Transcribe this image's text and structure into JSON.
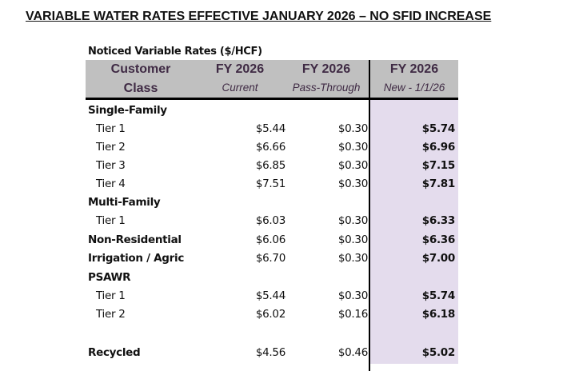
{
  "title": "VARIABLE WATER RATES EFFECTIVE JANUARY 2026 – NO SFID INCREASE",
  "subtitle": "Noticed Variable Rates ($/HCF)",
  "colors": {
    "header_bg": "#c0c0c0",
    "header_text": "#3f2a44",
    "new_col_bg": "#e4dced"
  },
  "header": [
    {
      "line1": "Customer",
      "line2": "Class"
    },
    {
      "line1": "FY 2026",
      "line2": "Current"
    },
    {
      "line1": "FY 2026",
      "line2": "Pass-Through"
    },
    {
      "line1": "FY 2026",
      "line2": "New - 1/1/26"
    }
  ],
  "rows": [
    {
      "label": "Single-Family",
      "current": "",
      "pass": "",
      "new": ""
    },
    {
      "label": "Tier 1",
      "current": "$5.44",
      "pass": "$0.30",
      "new": "$5.74"
    },
    {
      "label": "Tier 2",
      "current": "$6.66",
      "pass": "$0.30",
      "new": "$6.96"
    },
    {
      "label": "Tier 3",
      "current": "$6.85",
      "pass": "$0.30",
      "new": "$7.15"
    },
    {
      "label": "Tier 4",
      "current": "$7.51",
      "pass": "$0.30",
      "new": "$7.81"
    },
    {
      "label": "Multi-Family",
      "current": "",
      "pass": "",
      "new": ""
    },
    {
      "label": "Tier 1",
      "current": "$6.03",
      "pass": "$0.30",
      "new": "$6.33"
    },
    {
      "label": "Non-Residential",
      "current": "$6.06",
      "pass": "$0.30",
      "new": "$6.36"
    },
    {
      "label": "Irrigation / Agric",
      "current": "$6.70",
      "pass": "$0.30",
      "new": "$7.00"
    },
    {
      "label": "PSAWR",
      "current": "",
      "pass": "",
      "new": ""
    },
    {
      "label": "Tier 1",
      "current": "$5.44",
      "pass": "$0.30",
      "new": "$5.74"
    },
    {
      "label": "Tier 2",
      "current": "$6.02",
      "pass": "$0.16",
      "new": "$6.18"
    },
    {
      "label": "Recycled",
      "current": "$4.56",
      "pass": "$0.46",
      "new": "$5.02"
    }
  ]
}
